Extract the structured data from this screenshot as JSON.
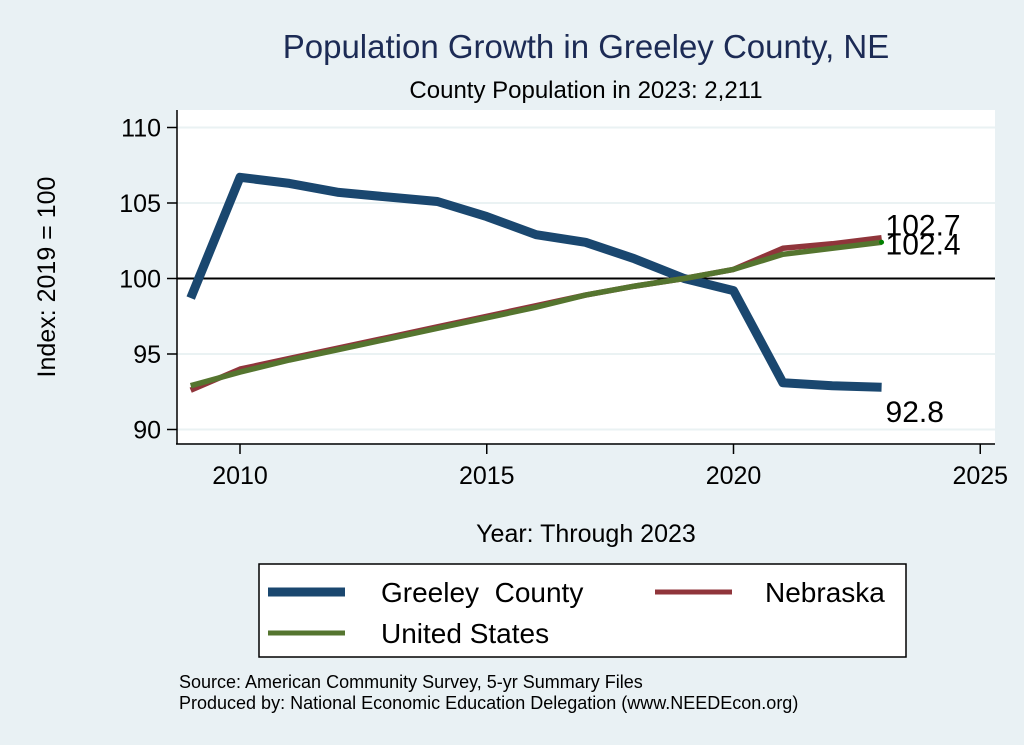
{
  "chart_data": {
    "type": "line",
    "title": "Population Growth in Greeley County, NE",
    "subtitle": "County Population in 2023: 2,211",
    "xlabel": "Year: Through 2023",
    "ylabel": "Index: 2019 = 100",
    "x": [
      2009,
      2010,
      2011,
      2012,
      2013,
      2014,
      2015,
      2016,
      2017,
      2018,
      2019,
      2020,
      2021,
      2022,
      2023
    ],
    "xlim": [
      2009,
      2025
    ],
    "ylim": [
      90,
      110
    ],
    "xticks": [
      2010,
      2015,
      2020,
      2025
    ],
    "yticks": [
      90,
      95,
      100,
      105,
      110
    ],
    "xtick_labels": [
      "2010",
      "2015",
      "2020",
      "2025"
    ],
    "ytick_labels": [
      "90",
      "95",
      "100",
      "105",
      "110"
    ],
    "reference_line": 100,
    "grid": true,
    "series": [
      {
        "name": "Greeley  County",
        "color": "#1a476f",
        "values": [
          98.7,
          106.7,
          106.3,
          105.7,
          105.4,
          105.1,
          104.1,
          102.9,
          102.4,
          101.3,
          100.0,
          99.2,
          93.1,
          92.9,
          92.8
        ],
        "end_label": "92.8"
      },
      {
        "name": "Nebraska",
        "color": "#90353b",
        "values": [
          92.6,
          94.0,
          94.7,
          95.4,
          96.1,
          96.8,
          97.5,
          98.2,
          98.9,
          99.5,
          100.0,
          100.6,
          102.0,
          102.3,
          102.7
        ],
        "end_label": "102.7"
      },
      {
        "name": "United States",
        "color": "#55752f",
        "values": [
          92.9,
          93.8,
          94.6,
          95.3,
          96.0,
          96.7,
          97.4,
          98.1,
          98.9,
          99.5,
          100.0,
          100.6,
          101.6,
          102.0,
          102.4
        ],
        "end_label": "102.4"
      }
    ],
    "legend": {
      "placement": "bottom",
      "entries": [
        "Greeley  County",
        "Nebraska",
        "United States"
      ]
    }
  },
  "notes": {
    "source": "Source: American Community Survey, 5-yr Summary Files",
    "produced_by": "Produced by: National Economic Education Delegation (www.NEEDEcon.org)"
  }
}
